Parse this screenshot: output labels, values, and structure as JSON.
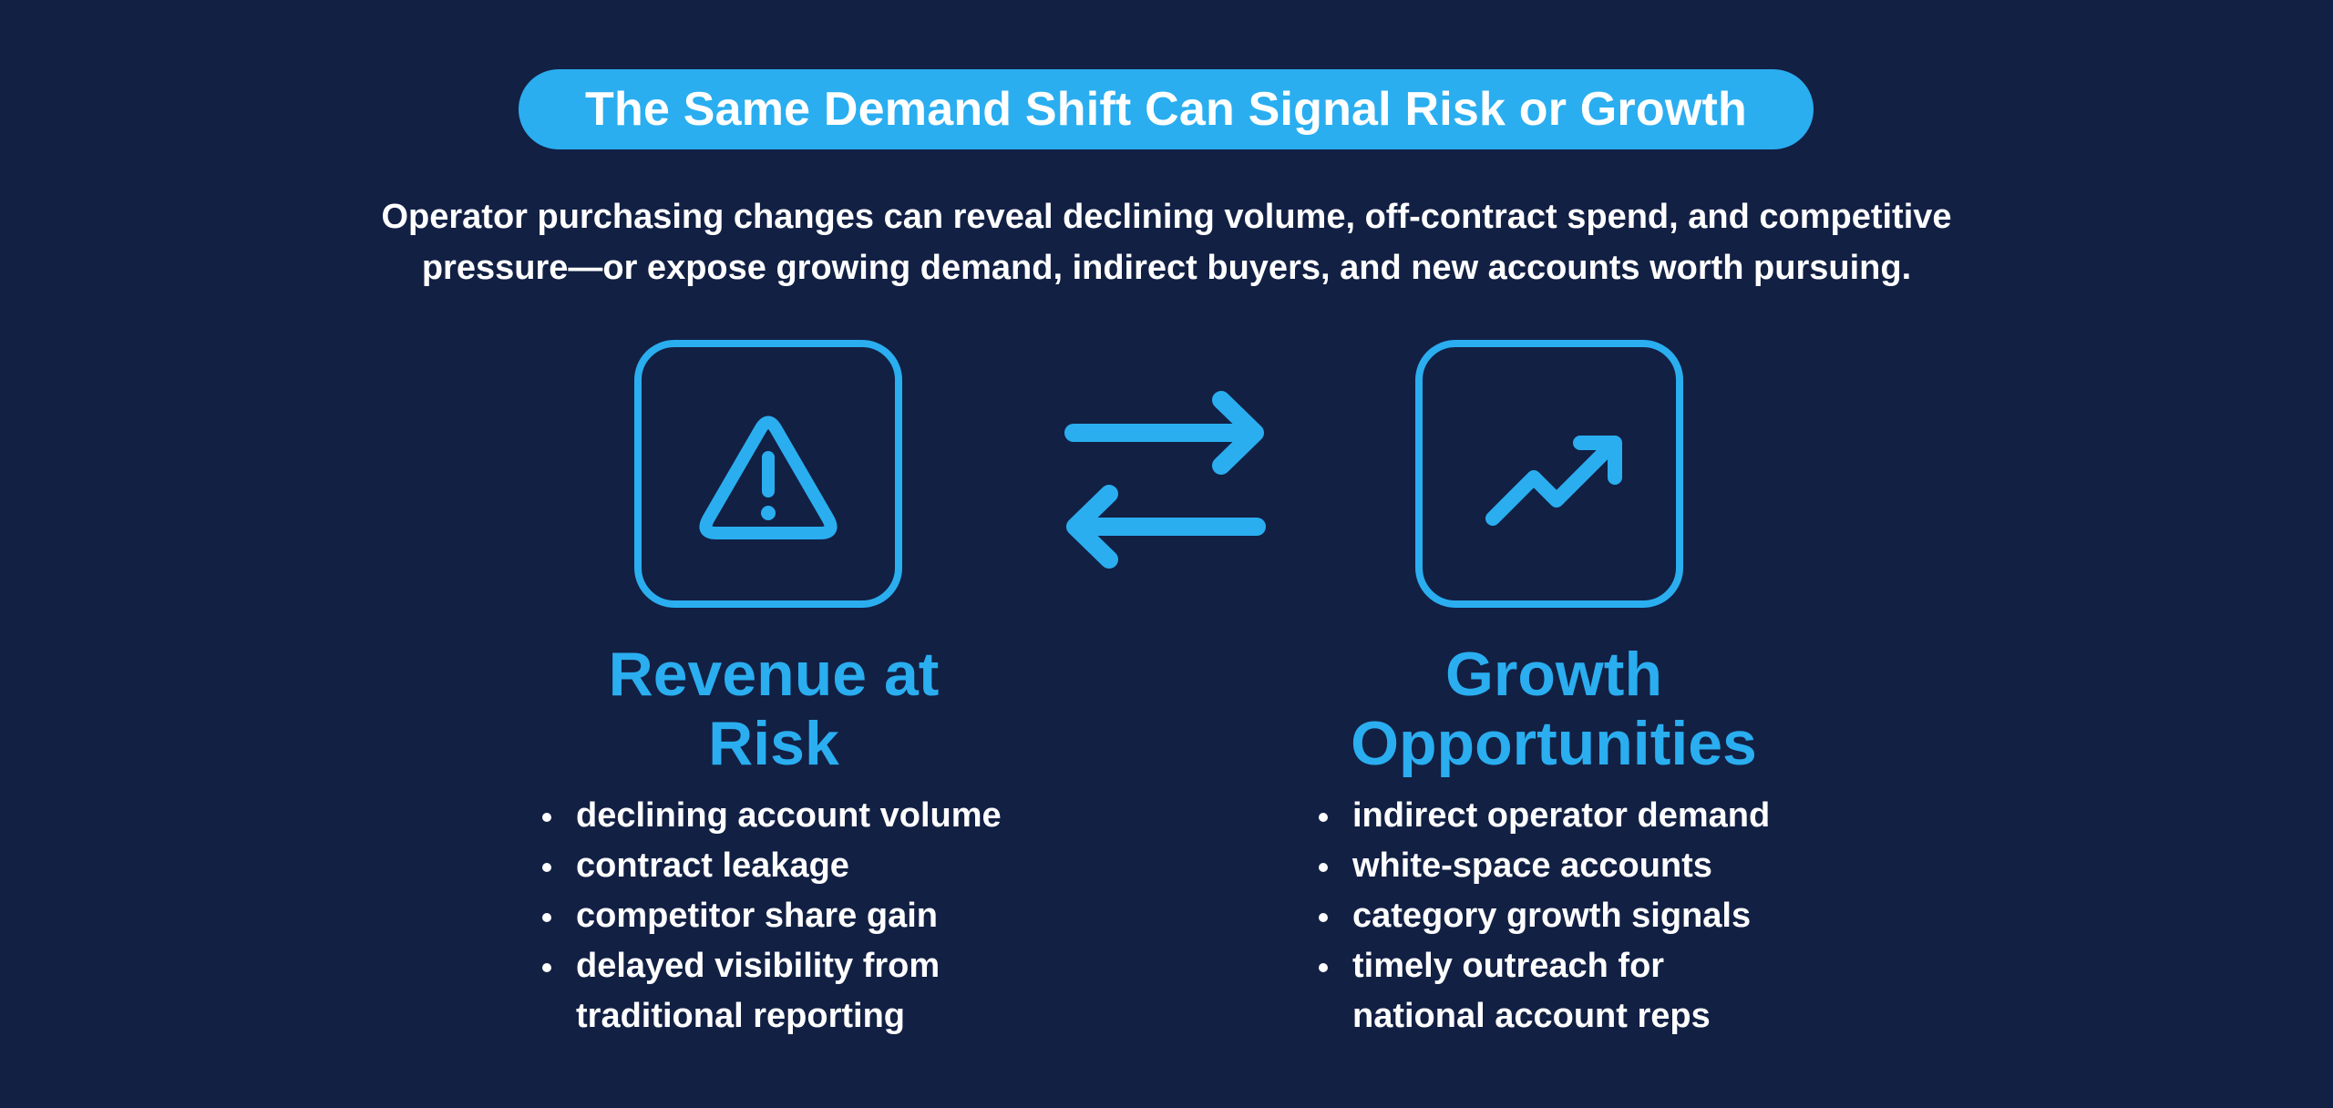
{
  "title": "The Same Demand Shift Can Signal Risk or Growth",
  "subtitle": {
    "line1": "Operator purchasing changes can reveal declining volume, off-contract spend, and competitive",
    "line2": "pressure—or expose growing demand, indirect buyers, and new accounts worth pursuing."
  },
  "left": {
    "icon": "warning-triangle-icon",
    "heading_line1": "Revenue at",
    "heading_line2": "Risk",
    "items": [
      "declining account volume",
      "contract leakage",
      "competitor share gain",
      "delayed visibility from",
      "traditional reporting"
    ]
  },
  "right": {
    "icon": "trending-up-icon",
    "heading_line1": "Growth",
    "heading_line2": "Opportunities",
    "items": [
      "indirect operator demand",
      "white-space accounts",
      "category growth signals",
      "timely outreach for",
      "national account reps"
    ]
  },
  "center_icon": "bidirectional-arrows-icon",
  "colors": {
    "background": "#122044",
    "accent": "#2aaef0",
    "text": "#ffffff"
  }
}
